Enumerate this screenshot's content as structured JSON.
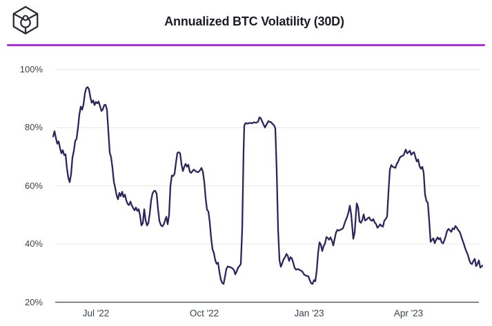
{
  "header": {
    "title": "Annualized BTC Volatility (30D)",
    "logo_icon": "the-block-cube-logo"
  },
  "theme": {
    "divider_color": "#ae2de3",
    "line_color": "#2b245e",
    "grid_color": "#ebebeb",
    "axis_color": "#565c64",
    "tick_label_color": "#3a424c",
    "title_color": "#1c1c26",
    "background": "#ffffff"
  },
  "chart_data": {
    "type": "line",
    "title": "Annualized BTC Volatility (30D)",
    "xlabel": "",
    "ylabel": "",
    "unit": "%",
    "grid": "horizontal-only",
    "legend": "none",
    "ylim": [
      20,
      100
    ],
    "y_ticks": [
      {
        "label": "100%",
        "value": 100
      },
      {
        "label": "80%",
        "value": 80
      },
      {
        "label": "60%",
        "value": 60
      },
      {
        "label": "40%",
        "value": 40
      },
      {
        "label": "20%",
        "value": 20
      }
    ],
    "x_domain": [
      0,
      622
    ],
    "x_ticks": [
      {
        "label": "Jul '22",
        "t": 62
      },
      {
        "label": "Oct '22",
        "t": 219
      },
      {
        "label": "Jan '23",
        "t": 371
      },
      {
        "label": "Apr '23",
        "t": 515
      }
    ],
    "series": [
      {
        "name": "Annualized BTC Volatility (30D)",
        "points": [
          [
            0,
            77
          ],
          [
            2,
            78.8
          ],
          [
            4,
            76.5
          ],
          [
            6,
            74.5
          ],
          [
            8,
            75.3
          ],
          [
            10,
            73
          ],
          [
            12,
            71.2
          ],
          [
            14,
            72.3
          ],
          [
            16,
            70.6
          ],
          [
            18,
            70.9
          ],
          [
            20,
            66
          ],
          [
            22,
            62.8
          ],
          [
            24,
            61.3
          ],
          [
            26,
            64
          ],
          [
            28,
            69.8
          ],
          [
            30,
            72
          ],
          [
            32,
            75.5
          ],
          [
            34,
            76.2
          ],
          [
            36,
            80
          ],
          [
            38,
            84.5
          ],
          [
            40,
            87.3
          ],
          [
            42,
            86.2
          ],
          [
            44,
            88
          ],
          [
            46,
            91.8
          ],
          [
            48,
            93.6
          ],
          [
            50,
            94
          ],
          [
            52,
            93.2
          ],
          [
            54,
            90.4
          ],
          [
            56,
            88.6
          ],
          [
            58,
            89.4
          ],
          [
            60,
            87.8
          ],
          [
            62,
            88.9
          ],
          [
            64,
            88.4
          ],
          [
            66,
            89
          ],
          [
            68,
            87.4
          ],
          [
            70,
            85.8
          ],
          [
            72,
            86.3
          ],
          [
            74,
            87.8
          ],
          [
            76,
            87.9
          ],
          [
            78,
            86.2
          ],
          [
            80,
            79
          ],
          [
            82,
            71.5
          ],
          [
            84,
            69.8
          ],
          [
            86,
            66.2
          ],
          [
            88,
            61.4
          ],
          [
            90,
            59.3
          ],
          [
            92,
            56.8
          ],
          [
            94,
            55.4
          ],
          [
            96,
            57.6
          ],
          [
            98,
            56.5
          ],
          [
            100,
            58
          ],
          [
            102,
            56.2
          ],
          [
            104,
            57
          ],
          [
            106,
            55
          ],
          [
            108,
            53.8
          ],
          [
            110,
            53.4
          ],
          [
            112,
            54.6
          ],
          [
            114,
            53.3
          ],
          [
            116,
            52.4
          ],
          [
            118,
            51.6
          ],
          [
            120,
            52.6
          ],
          [
            122,
            51.4
          ],
          [
            124,
            52
          ],
          [
            126,
            49.8
          ],
          [
            128,
            46.4
          ],
          [
            130,
            47.2
          ],
          [
            132,
            52
          ],
          [
            134,
            48.2
          ],
          [
            136,
            46.4
          ],
          [
            138,
            47.2
          ],
          [
            140,
            50.5
          ],
          [
            142,
            55
          ],
          [
            144,
            57.4
          ],
          [
            146,
            58.2
          ],
          [
            148,
            58.3
          ],
          [
            150,
            57.3
          ],
          [
            152,
            52
          ],
          [
            154,
            48
          ],
          [
            156,
            46.6
          ],
          [
            158,
            46.1
          ],
          [
            160,
            46.6
          ],
          [
            162,
            48
          ],
          [
            164,
            49.4
          ],
          [
            166,
            46.8
          ],
          [
            168,
            50
          ],
          [
            170,
            60
          ],
          [
            172,
            63.6
          ],
          [
            174,
            63.4
          ],
          [
            176,
            64.2
          ],
          [
            178,
            68
          ],
          [
            180,
            71.3
          ],
          [
            182,
            71.6
          ],
          [
            184,
            71.2
          ],
          [
            186,
            67.5
          ],
          [
            188,
            65.1
          ],
          [
            190,
            66.5
          ],
          [
            192,
            67.6
          ],
          [
            194,
            66.6
          ],
          [
            196,
            67.3
          ],
          [
            198,
            64.9
          ],
          [
            200,
            64.5
          ],
          [
            202,
            65.1
          ],
          [
            204,
            65.6
          ],
          [
            207,
            65
          ],
          [
            210,
            64.7
          ],
          [
            213,
            65.4
          ],
          [
            215,
            66.2
          ],
          [
            217,
            64.9
          ],
          [
            219,
            61.5
          ],
          [
            221,
            55.8
          ],
          [
            223,
            51.8
          ],
          [
            225,
            51.2
          ],
          [
            227,
            47.5
          ],
          [
            229,
            42
          ],
          [
            231,
            38.2
          ],
          [
            233,
            36.9
          ],
          [
            235,
            34.4
          ],
          [
            237,
            33.2
          ],
          [
            239,
            33.6
          ],
          [
            241,
            30.4
          ],
          [
            243,
            27.8
          ],
          [
            245,
            26.6
          ],
          [
            247,
            26.3
          ],
          [
            249,
            28.7
          ],
          [
            251,
            31.4
          ],
          [
            253,
            32.3
          ],
          [
            256,
            32.1
          ],
          [
            259,
            31.8
          ],
          [
            262,
            31.1
          ],
          [
            264,
            29.6
          ],
          [
            266,
            30.6
          ],
          [
            268,
            31.9
          ],
          [
            270,
            32.4
          ],
          [
            272,
            33.2
          ],
          [
            274,
            45
          ],
          [
            276,
            72
          ],
          [
            277,
            80.8
          ],
          [
            279,
            81.6
          ],
          [
            282,
            81.4
          ],
          [
            285,
            81.7
          ],
          [
            288,
            81.5
          ],
          [
            291,
            81.9
          ],
          [
            294,
            81.7
          ],
          [
            297,
            82.1
          ],
          [
            299,
            83.6
          ],
          [
            301,
            83.2
          ],
          [
            304,
            81.6
          ],
          [
            307,
            80.1
          ],
          [
            309,
            81
          ],
          [
            312,
            82.3
          ],
          [
            314,
            82
          ],
          [
            316,
            81.9
          ],
          [
            318,
            81.3
          ],
          [
            320,
            80.9
          ],
          [
            322,
            79.8
          ],
          [
            324,
            65
          ],
          [
            326,
            45
          ],
          [
            328,
            34.5
          ],
          [
            330,
            32.2
          ],
          [
            332,
            33.4
          ],
          [
            334,
            34.8
          ],
          [
            336,
            35.4
          ],
          [
            338,
            36.6
          ],
          [
            340,
            36
          ],
          [
            342,
            34.2
          ],
          [
            344,
            35.5
          ],
          [
            346,
            35.1
          ],
          [
            348,
            33.5
          ],
          [
            350,
            31.8
          ],
          [
            352,
            31.2
          ],
          [
            355,
            31.4
          ],
          [
            358,
            31
          ],
          [
            361,
            30.6
          ],
          [
            364,
            29.4
          ],
          [
            367,
            29.1
          ],
          [
            370,
            28.9
          ],
          [
            372,
            27.5
          ],
          [
            374,
            26.5
          ],
          [
            376,
            26.3
          ],
          [
            378,
            27.6
          ],
          [
            380,
            27.2
          ],
          [
            382,
            31
          ],
          [
            384,
            37
          ],
          [
            386,
            40.6
          ],
          [
            388,
            39.8
          ],
          [
            390,
            37.6
          ],
          [
            392,
            39.3
          ],
          [
            394,
            40.2
          ],
          [
            396,
            42.4
          ],
          [
            398,
            42.1
          ],
          [
            400,
            41.5
          ],
          [
            402,
            42.3
          ],
          [
            404,
            41.2
          ],
          [
            406,
            39.5
          ],
          [
            408,
            41.8
          ],
          [
            410,
            44
          ],
          [
            412,
            44.9
          ],
          [
            414,
            44.6
          ],
          [
            416,
            44.9
          ],
          [
            418,
            45.1
          ],
          [
            420,
            45.4
          ],
          [
            422,
            46.8
          ],
          [
            424,
            48.2
          ],
          [
            426,
            49.3
          ],
          [
            428,
            50.9
          ],
          [
            430,
            53.2
          ],
          [
            432,
            50.1
          ],
          [
            434,
            44.5
          ],
          [
            435,
            41.8
          ],
          [
            437,
            44
          ],
          [
            439,
            51
          ],
          [
            440,
            54
          ],
          [
            442,
            52.6
          ],
          [
            444,
            47.8
          ],
          [
            446,
            47.3
          ],
          [
            448,
            48.3
          ],
          [
            450,
            50.2
          ],
          [
            452,
            48.1
          ],
          [
            454,
            48.4
          ],
          [
            456,
            48.9
          ],
          [
            458,
            49.2
          ],
          [
            460,
            48.3
          ],
          [
            462,
            48
          ],
          [
            464,
            48.6
          ],
          [
            466,
            47.4
          ],
          [
            468,
            46.9
          ],
          [
            470,
            45.6
          ],
          [
            472,
            46.1
          ],
          [
            474,
            46.8
          ],
          [
            476,
            46.2
          ],
          [
            478,
            46
          ],
          [
            480,
            48.1
          ],
          [
            482,
            48.6
          ],
          [
            484,
            49.5
          ],
          [
            486,
            58
          ],
          [
            488,
            65.5
          ],
          [
            490,
            67.2
          ],
          [
            492,
            66.6
          ],
          [
            494,
            66.4
          ],
          [
            496,
            66.2
          ],
          [
            498,
            67.6
          ],
          [
            500,
            68.3
          ],
          [
            502,
            69.6
          ],
          [
            504,
            70.1
          ],
          [
            506,
            70.3
          ],
          [
            508,
            70.6
          ],
          [
            510,
            71.9
          ],
          [
            511,
            72.5
          ],
          [
            513,
            71.2
          ],
          [
            515,
            71.6
          ],
          [
            517,
            72.1
          ],
          [
            519,
            70.7
          ],
          [
            521,
            71.3
          ],
          [
            523,
            71.6
          ],
          [
            525,
            69.9
          ],
          [
            527,
            68.4
          ],
          [
            529,
            69.1
          ],
          [
            531,
            66.8
          ],
          [
            533,
            65.9
          ],
          [
            535,
            66.6
          ],
          [
            537,
            64.5
          ],
          [
            539,
            57
          ],
          [
            541,
            54.8
          ],
          [
            543,
            54.2
          ],
          [
            545,
            48
          ],
          [
            547,
            40.8
          ],
          [
            549,
            41.4
          ],
          [
            551,
            42
          ],
          [
            553,
            40.3
          ],
          [
            555,
            41.5
          ],
          [
            557,
            42.3
          ],
          [
            559,
            41.6
          ],
          [
            561,
            42.1
          ],
          [
            563,
            40.6
          ],
          [
            565,
            40.2
          ],
          [
            567,
            41.3
          ],
          [
            569,
            42.8
          ],
          [
            571,
            44.6
          ],
          [
            573,
            45.2
          ],
          [
            575,
            44.7
          ],
          [
            577,
            44.2
          ],
          [
            579,
            45.4
          ],
          [
            581,
            45.1
          ],
          [
            583,
            46.2
          ],
          [
            585,
            45.6
          ],
          [
            587,
            44.8
          ],
          [
            589,
            44.3
          ],
          [
            591,
            43
          ],
          [
            593,
            41.5
          ],
          [
            595,
            40.2
          ],
          [
            597,
            38.6
          ],
          [
            599,
            37.4
          ],
          [
            601,
            36.3
          ],
          [
            603,
            34.6
          ],
          [
            605,
            33.4
          ],
          [
            607,
            33.1
          ],
          [
            609,
            34.2
          ],
          [
            611,
            34.9
          ],
          [
            613,
            32.4
          ],
          [
            615,
            33.2
          ],
          [
            617,
            34.4
          ],
          [
            619,
            31.9
          ],
          [
            621,
            32.3
          ],
          [
            622,
            32.6
          ]
        ]
      }
    ]
  }
}
